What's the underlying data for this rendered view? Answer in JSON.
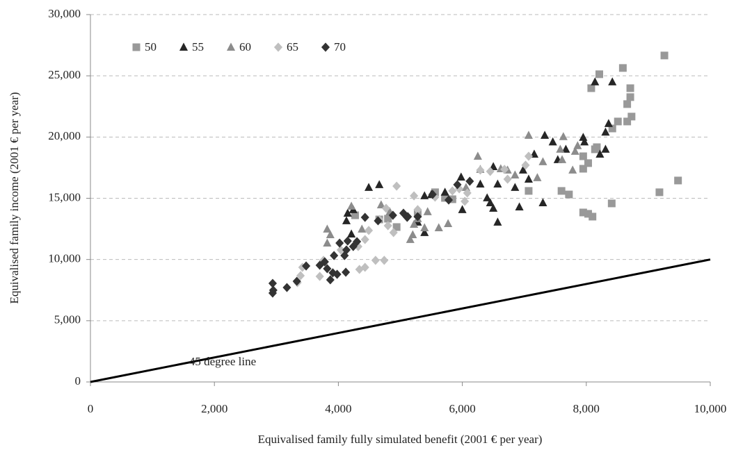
{
  "chart_data": {
    "type": "scatter",
    "xlabel": "Equivalised family fully simulated benefit (2001 € per year)",
    "ylabel": "Equivalised family income (2001 € per year)",
    "xlim": [
      0,
      10000
    ],
    "ylim": [
      0,
      30000
    ],
    "xticks": [
      0,
      {
        "value": 2000,
        "label": "2,000"
      },
      {
        "value": 4000,
        "label": "4,000"
      },
      {
        "value": 6000,
        "label": "6,000"
      },
      {
        "value": 8000,
        "label": "8,000"
      },
      {
        "value": 10000,
        "label": "10,000"
      }
    ],
    "yticks": [
      0,
      {
        "value": 5000,
        "label": "5,000"
      },
      {
        "value": 10000,
        "label": "10,000"
      },
      {
        "value": 15000,
        "label": "15,000"
      },
      {
        "value": 20000,
        "label": "20,000"
      },
      {
        "value": 25000,
        "label": "25,000"
      },
      {
        "value": 30000,
        "label": "30,000"
      }
    ],
    "grid": true,
    "legend": "top-left",
    "reference_line": {
      "label": "45 degree line",
      "x": [
        0,
        10000
      ],
      "y": [
        0,
        10000
      ],
      "color": "#000000"
    },
    "series": [
      {
        "name": "50",
        "color": "#999999",
        "marker": "square",
        "x": [
          9260,
          8590,
          8210,
          8080,
          8710,
          8710,
          8660,
          8730,
          8660,
          8510,
          8420,
          8170,
          8140,
          7950,
          8030,
          7950,
          7600,
          7720,
          7070,
          9180,
          9480,
          7950,
          8030,
          8100,
          8410,
          5840,
          4940,
          4660,
          4270,
          4800,
          5280,
          5560,
          5720
        ],
        "values": [
          26660,
          25640,
          25130,
          23990,
          23990,
          23260,
          22690,
          21670,
          21270,
          21270,
          20700,
          19170,
          19000,
          18430,
          17870,
          17410,
          15600,
          15310,
          15600,
          15490,
          16450,
          13840,
          13730,
          13500,
          14580,
          14920,
          12650,
          13270,
          13610,
          13330,
          13730,
          15490,
          15030
        ]
      },
      {
        "name": "55",
        "color": "#262626",
        "marker": "triangle",
        "x": [
          8140,
          8420,
          8360,
          8310,
          8310,
          8220,
          7950,
          7970,
          7670,
          7460,
          7330,
          7540,
          7160,
          6980,
          7070,
          6850,
          7300,
          6920,
          6570,
          6500,
          6400,
          6450,
          6500,
          6570,
          5980,
          6000,
          5500,
          5390,
          5720,
          4660,
          4490,
          4150,
          4130,
          4210,
          4240,
          5390,
          5280,
          6290
        ],
        "values": [
          24500,
          24500,
          21100,
          20400,
          19000,
          18600,
          19970,
          19600,
          19000,
          19600,
          20140,
          18150,
          18600,
          17300,
          16560,
          15880,
          14630,
          14290,
          16160,
          17580,
          15030,
          14630,
          14180,
          13050,
          16730,
          14070,
          15310,
          15200,
          15490,
          16110,
          15880,
          13780,
          13160,
          12080,
          14070,
          12200,
          13050,
          16160
        ]
      },
      {
        "name": "60",
        "color": "#8c8c8c",
        "marker": "triangle",
        "x": [
          7070,
          7630,
          7580,
          7860,
          7820,
          7780,
          7610,
          7300,
          7210,
          6850,
          6730,
          6620,
          6250,
          6290,
          6060,
          5770,
          5620,
          5390,
          5220,
          5200,
          5160,
          5280,
          5440,
          4380,
          4210,
          3820,
          3870,
          3820,
          4690,
          4830
        ],
        "values": [
          20140,
          20030,
          19000,
          19290,
          18830,
          17300,
          18150,
          17980,
          16680,
          16900,
          17300,
          17410,
          18430,
          17360,
          15880,
          12930,
          12590,
          12590,
          12870,
          12020,
          11630,
          13330,
          13900,
          12480,
          14350,
          12480,
          12020,
          11340,
          14460,
          13900
        ]
      },
      {
        "name": "65",
        "color": "#bfbfbf",
        "marker": "diamond",
        "x": [
          7070,
          7020,
          6680,
          6450,
          6290,
          6730,
          6080,
          6040,
          5950,
          5840,
          5560,
          5220,
          4940,
          4770,
          4660,
          4800,
          4890,
          4320,
          4430,
          4490,
          4740,
          4600,
          4340,
          4430,
          3760,
          3700,
          3390,
          3340,
          3420,
          4040,
          5280
        ],
        "values": [
          18430,
          17700,
          17360,
          17190,
          17300,
          16560,
          15430,
          14750,
          15770,
          15600,
          15090,
          15200,
          15990,
          14180,
          13270,
          12760,
          12200,
          11060,
          11630,
          12370,
          9930,
          9930,
          9190,
          9360,
          9930,
          8620,
          8680,
          8110,
          9360,
          10780,
          14070
        ]
      },
      {
        "name": "70",
        "color": "#333333",
        "marker": "diamond",
        "x": [
          2940,
          2950,
          2940,
          3170,
          3330,
          3480,
          3700,
          3780,
          3820,
          3870,
          3910,
          3930,
          3980,
          4020,
          4100,
          4120,
          4130,
          4150,
          4240,
          4300,
          4430,
          4640,
          4880,
          5050,
          5120,
          5280,
          5520,
          5920,
          6120,
          5780,
          5110
        ],
        "values": [
          8050,
          7490,
          7260,
          7710,
          8220,
          9470,
          9530,
          9810,
          9250,
          8340,
          8910,
          10320,
          8790,
          11340,
          10320,
          8960,
          10780,
          11510,
          11060,
          11460,
          13440,
          13160,
          13610,
          13780,
          13500,
          13500,
          15310,
          16110,
          16390,
          14860,
          13440
        ]
      }
    ]
  }
}
